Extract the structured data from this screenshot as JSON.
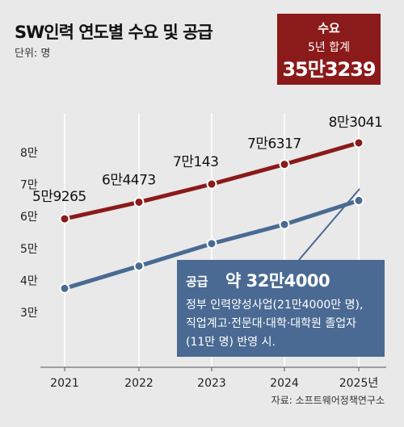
{
  "chart_data": {
    "type": "line",
    "title": "SW인력 연도별 수요 및 공급",
    "unit_label": "단위: 명",
    "x": [
      "2021",
      "2022",
      "2023",
      "2024",
      "2025년"
    ],
    "y_ticks": [
      "3만",
      "4만",
      "5만",
      "6만",
      "7만",
      "8만"
    ],
    "ylim": [
      30000,
      85000
    ],
    "series": [
      {
        "name": "수요",
        "color": "#8b1a1a",
        "values": [
          59265,
          64473,
          70143,
          76317,
          83041
        ],
        "labels": [
          "5만9265",
          "6만4473",
          "7만143",
          "7만6317",
          "8만3041"
        ]
      },
      {
        "name": "공급",
        "color": "#4a6a93",
        "values": [
          37500,
          44500,
          51500,
          57500,
          65000
        ]
      }
    ],
    "demand_box": {
      "title": "수요",
      "subtitle": "5년 합계",
      "total": "35만3239",
      "color": "#8b1a1a"
    },
    "supply_box": {
      "title": "공급",
      "total": "약 32만4000",
      "note_lines": [
        "정부 인력양성사업(21만4000만 명),",
        "직업계고·전문대·대학·대학원 졸업자",
        "(11만 명) 반영 시."
      ],
      "color": "#4a6a93"
    },
    "source": "자료: 소프트웨어정책연구소",
    "grid": true
  }
}
